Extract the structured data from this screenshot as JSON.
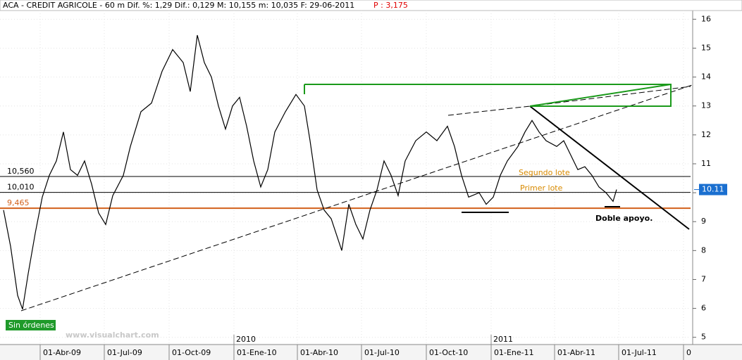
{
  "chart_data": {
    "type": "line",
    "title": "ACA - CREDIT AGRICOLE -  60 m Dif. %: 1,29 Dif.: 0,129 M: 10,155 m: 10,035 F: 29-06-2011",
    "subtitle": "P : 3,175",
    "color": "#000000",
    "x": [
      "2009-02-08",
      "2009-02-18",
      "2009-02-28",
      "2009-03-07",
      "2009-03-15",
      "2009-03-25",
      "2009-04-04",
      "2009-04-14",
      "2009-04-24",
      "2009-05-04",
      "2009-05-14",
      "2009-05-24",
      "2009-06-03",
      "2009-06-13",
      "2009-06-23",
      "2009-07-03",
      "2009-07-13",
      "2009-07-28",
      "2009-08-07",
      "2009-08-22",
      "2009-09-06",
      "2009-09-21",
      "2009-10-06",
      "2009-10-21",
      "2009-10-31",
      "2009-11-10",
      "2009-11-20",
      "2009-11-30",
      "2009-12-10",
      "2009-12-20",
      "2009-12-30",
      "2010-01-09",
      "2010-01-19",
      "2010-01-29",
      "2010-02-08",
      "2010-02-18",
      "2010-02-28",
      "2010-03-15",
      "2010-03-30",
      "2010-04-11",
      "2010-04-19",
      "2010-04-29",
      "2010-05-09",
      "2010-05-19",
      "2010-06-03",
      "2010-06-13",
      "2010-06-23",
      "2010-07-03",
      "2010-07-13",
      "2010-07-23",
      "2010-08-02",
      "2010-08-12",
      "2010-08-22",
      "2010-09-01",
      "2010-09-16",
      "2010-10-01",
      "2010-10-16",
      "2010-10-31",
      "2010-11-10",
      "2010-11-20",
      "2010-11-30",
      "2010-12-15",
      "2010-12-25",
      "2011-01-04",
      "2011-01-14",
      "2011-01-24",
      "2011-02-08",
      "2011-02-18",
      "2011-02-28",
      "2011-03-10",
      "2011-03-20",
      "2011-04-04",
      "2011-04-14",
      "2011-04-24",
      "2011-05-04",
      "2011-05-14",
      "2011-05-24",
      "2011-06-03",
      "2011-06-13",
      "2011-06-23",
      "2011-06-28"
    ],
    "values": [
      9.4,
      8.15,
      6.45,
      5.97,
      7.2,
      8.6,
      9.85,
      10.6,
      11.1,
      12.1,
      10.8,
      10.6,
      11.1,
      10.3,
      9.3,
      8.9,
      9.9,
      10.6,
      11.6,
      12.8,
      13.1,
      14.2,
      14.95,
      14.5,
      13.5,
      15.45,
      14.5,
      14.0,
      13.0,
      12.2,
      13.0,
      13.3,
      12.3,
      11.1,
      10.2,
      10.8,
      12.1,
      12.8,
      13.4,
      13.0,
      11.8,
      10.1,
      9.4,
      9.1,
      8.0,
      9.6,
      8.9,
      8.4,
      9.4,
      10.1,
      11.1,
      10.6,
      9.9,
      11.1,
      11.8,
      12.1,
      11.8,
      12.3,
      11.6,
      10.6,
      9.85,
      10.0,
      9.6,
      9.85,
      10.6,
      11.1,
      11.6,
      12.1,
      12.5,
      12.1,
      11.8,
      11.6,
      11.8,
      11.3,
      10.8,
      10.9,
      10.6,
      10.2,
      10.0,
      9.7,
      10.11
    ],
    "last_label": "10.11",
    "xlim": [
      "2009-02-03",
      "2011-10-11"
    ],
    "xticks": [
      {
        "value": "2009-04-01",
        "label": "01-Abr-09"
      },
      {
        "value": "2009-07-01",
        "label": "01-Jul-09"
      },
      {
        "value": "2009-10-01",
        "label": "01-Oct-09"
      },
      {
        "value": "2010-01-01",
        "label": "01-Ene-10"
      },
      {
        "value": "2010-04-01",
        "label": "01-Abr-10"
      },
      {
        "value": "2010-07-01",
        "label": "01-Jul-10"
      },
      {
        "value": "2010-10-01",
        "label": "01-Oct-10"
      },
      {
        "value": "2011-01-01",
        "label": "01-Ene-11"
      },
      {
        "value": "2011-04-01",
        "label": "01-Abr-11"
      },
      {
        "value": "2011-07-01",
        "label": "01-Jul-11"
      },
      {
        "value": "2011-10-01",
        "label": "0"
      }
    ],
    "year_ticks": [
      {
        "value": "2010-01-01",
        "label": "2010"
      },
      {
        "value": "2011-01-01",
        "label": "2011"
      }
    ],
    "ylim": [
      4.75,
      16.3
    ],
    "yticks": [
      5,
      6,
      7,
      8,
      9,
      10,
      11,
      12,
      13,
      14,
      15,
      16
    ],
    "hlines": [
      {
        "value": 10.56,
        "label": "10,560",
        "color": "#000000"
      },
      {
        "value": 10.01,
        "label": "10,010",
        "color": "#000000"
      },
      {
        "value": 9.465,
        "label": "9,465",
        "color": "#d2601a"
      }
    ],
    "annotations": [
      "Segundo lote",
      "Primer lote",
      "Doble apoyo.",
      "Sin órdenes",
      "www.visualchart.com"
    ],
    "grid": true
  }
}
